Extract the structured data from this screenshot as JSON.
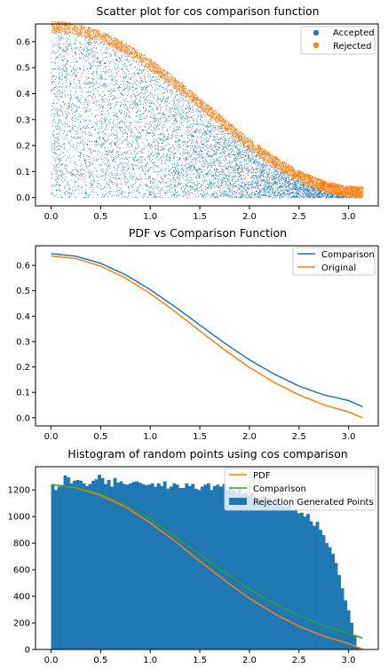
{
  "chart_data": [
    {
      "type": "scatter",
      "title": "Scatter plot for cos comparison function",
      "xlabel": "",
      "ylabel": "",
      "xlim": [
        -0.157,
        3.299
      ],
      "ylim": [
        -0.032,
        0.668
      ],
      "xticks": [
        0.0,
        0.5,
        1.0,
        1.5,
        2.0,
        2.5,
        3.0
      ],
      "xtick_labels": [
        "0.0",
        "0.5",
        "1.0",
        "1.5",
        "2.0",
        "2.5",
        "3.0"
      ],
      "yticks": [
        0.0,
        0.1,
        0.2,
        0.3,
        0.4,
        0.5,
        0.6
      ],
      "ytick_labels": [
        "0.0",
        "0.1",
        "0.2",
        "0.3",
        "0.4",
        "0.5",
        "0.6"
      ],
      "legend_position": "top-right",
      "series": [
        {
          "name": "Accepted",
          "color": "#1f77b4",
          "region": "y below pdf(x) = cos(x/2)^2 * 0.6366",
          "x_range": [
            0,
            3.1416
          ]
        },
        {
          "name": "Rejected",
          "color": "#ff7f0e",
          "region": "y between pdf(x) and comparison(x) = 0.6366*cos(x/2)^2 + 0.0434",
          "x_range": [
            0,
            3.1416
          ]
        }
      ]
    },
    {
      "type": "line",
      "title": "PDF vs Comparison Function",
      "xlabel": "",
      "ylabel": "",
      "xlim": [
        -0.157,
        3.299
      ],
      "ylim": [
        -0.032,
        0.677
      ],
      "xticks": [
        0.0,
        0.5,
        1.0,
        1.5,
        2.0,
        2.5,
        3.0
      ],
      "xtick_labels": [
        "0.0",
        "0.5",
        "1.0",
        "1.5",
        "2.0",
        "2.5",
        "3.0"
      ],
      "yticks": [
        0.0,
        0.1,
        0.2,
        0.3,
        0.4,
        0.5,
        0.6
      ],
      "ytick_labels": [
        "0.0",
        "0.1",
        "0.2",
        "0.3",
        "0.4",
        "0.5",
        "0.6"
      ],
      "legend_position": "top-right",
      "x": [
        0.0,
        0.25,
        0.5,
        0.75,
        1.0,
        1.25,
        1.5,
        1.75,
        2.0,
        2.25,
        2.5,
        2.75,
        3.0,
        3.1416
      ],
      "series": [
        {
          "name": "Comparison",
          "color": "#1f77b4",
          "values": [
            0.646,
            0.636,
            0.608,
            0.563,
            0.504,
            0.437,
            0.365,
            0.294,
            0.228,
            0.172,
            0.125,
            0.09,
            0.068,
            0.043
          ]
        },
        {
          "name": "Original",
          "color": "#ff7f0e",
          "values": [
            0.637,
            0.627,
            0.597,
            0.55,
            0.489,
            0.418,
            0.342,
            0.267,
            0.198,
            0.139,
            0.09,
            0.051,
            0.023,
            0.0
          ]
        }
      ]
    },
    {
      "type": "bar",
      "title": "Histogram of random points using cos comparison",
      "xlabel": "",
      "ylabel": "",
      "xlim": [
        -0.157,
        3.299
      ],
      "ylim": [
        0,
        1375
      ],
      "xticks": [
        0.0,
        0.5,
        1.0,
        1.5,
        2.0,
        2.5,
        3.0
      ],
      "xtick_labels": [
        "0.0",
        "0.5",
        "1.0",
        "1.5",
        "2.0",
        "2.5",
        "3.0"
      ],
      "yticks": [
        0,
        200,
        400,
        600,
        800,
        1000,
        1200
      ],
      "ytick_labels": [
        "0",
        "200",
        "400",
        "600",
        "800",
        "1000",
        "1200"
      ],
      "legend_position": "top-right",
      "bin_start": 0.0,
      "bin_width": 0.0314,
      "bars_name": "Rejection Generated Points",
      "bars_color": "#1f77b4",
      "values": [
        1240,
        1200,
        1225,
        1230,
        1310,
        1295,
        1250,
        1270,
        1275,
        1270,
        1250,
        1230,
        1245,
        1270,
        1280,
        1315,
        1290,
        1245,
        1275,
        1225,
        1290,
        1255,
        1265,
        1245,
        1240,
        1250,
        1260,
        1265,
        1255,
        1245,
        1235,
        1240,
        1250,
        1225,
        1250,
        1230,
        1265,
        1210,
        1225,
        1250,
        1240,
        1215,
        1215,
        1250,
        1230,
        1245,
        1210,
        1200,
        1225,
        1240,
        1250,
        1200,
        1230,
        1240,
        1225,
        1245,
        1200,
        1215,
        1195,
        1180,
        1205,
        1170,
        1185,
        1160,
        1175,
        1150,
        1145,
        1120,
        1155,
        1135,
        1105,
        1100,
        1130,
        1095,
        1080,
        1070,
        1090,
        1045,
        1060,
        1025,
        1030,
        1000,
        1020,
        965,
        930,
        960,
        900,
        860,
        800,
        770,
        720,
        650,
        560,
        460,
        370,
        295,
        200,
        100,
        20,
        0
      ],
      "series": [
        {
          "name": "PDF",
          "color": "#ff7f0e",
          "values": [
            1240,
            1218,
            1160,
            1072,
            952,
            815,
            665,
            520,
            385,
            270,
            175,
            100,
            45,
            3
          ],
          "x": [
            0.0,
            0.25,
            0.5,
            0.75,
            1.0,
            1.25,
            1.5,
            1.75,
            2.0,
            2.25,
            2.5,
            2.75,
            3.0,
            3.1416
          ]
        },
        {
          "name": "Comparison",
          "color": "#2ca02c",
          "values": [
            1240,
            1222,
            1170,
            1088,
            978,
            850,
            715,
            580,
            455,
            345,
            255,
            180,
            120,
            85
          ],
          "x": [
            0.0,
            0.25,
            0.5,
            0.75,
            1.0,
            1.25,
            1.5,
            1.75,
            2.0,
            2.25,
            2.5,
            2.75,
            3.0,
            3.1416
          ]
        }
      ]
    }
  ]
}
